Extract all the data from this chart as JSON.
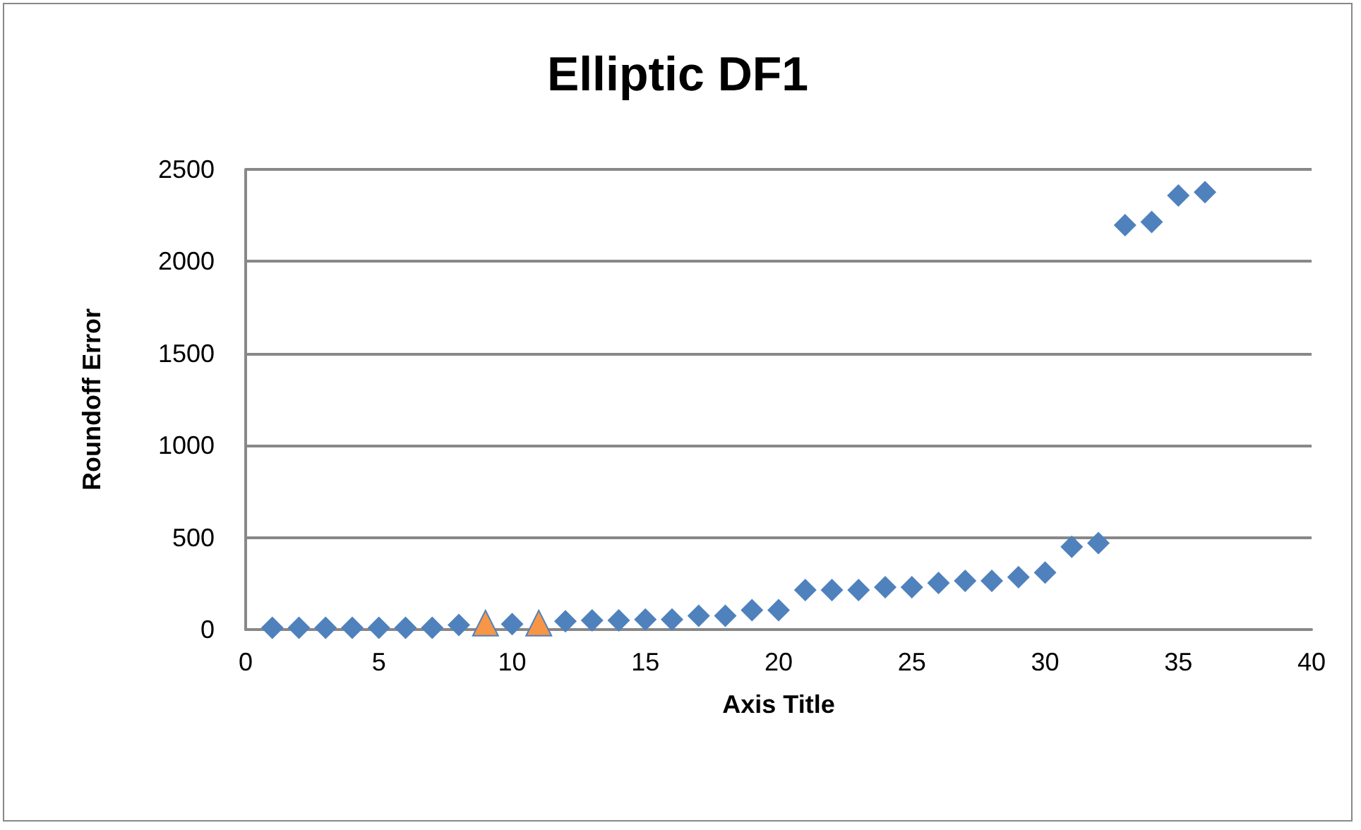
{
  "chart_data": {
    "type": "scatter",
    "title": "Elliptic DF1",
    "xlabel": "Axis Title",
    "ylabel": "Roundoff Error",
    "xlim": [
      0,
      40
    ],
    "xticks": [
      0,
      5,
      10,
      15,
      20,
      25,
      30,
      35,
      40
    ],
    "ylim": [
      0,
      2500
    ],
    "yticks": [
      0,
      500,
      1000,
      1500,
      2000,
      2500
    ],
    "grid": "y",
    "series": [
      {
        "color": "#4f81bd",
        "marker": "diamond",
        "x": [
          1,
          2,
          3,
          4,
          5,
          6,
          7,
          8,
          10,
          12,
          13,
          14,
          15,
          16,
          17,
          18,
          19,
          20,
          21,
          22,
          23,
          24,
          25,
          26,
          27,
          28,
          29,
          30,
          31,
          32,
          33,
          34,
          35,
          36
        ],
        "values": [
          10,
          10,
          10,
          10,
          10,
          10,
          10,
          25,
          30,
          45,
          50,
          50,
          55,
          55,
          75,
          75,
          105,
          105,
          215,
          215,
          215,
          230,
          230,
          253,
          265,
          265,
          285,
          310,
          450,
          470,
          2197,
          2214,
          2358,
          2376
        ]
      },
      {
        "color": "#f79646",
        "marker": "triangle",
        "x": [
          9,
          11
        ],
        "values": [
          35,
          35
        ]
      }
    ]
  }
}
